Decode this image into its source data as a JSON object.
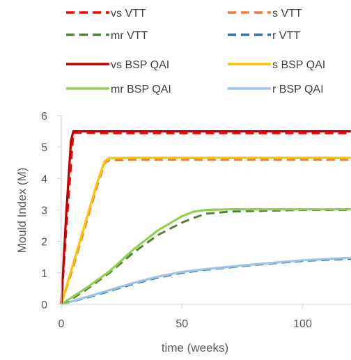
{
  "chart_data": {
    "type": "line",
    "xlabel": "time (weeks)",
    "ylabel": "Mould Index (M)",
    "xlim": [
      0,
      120
    ],
    "ylim": [
      0,
      6
    ],
    "xticks": [
      "0",
      "50",
      "100"
    ],
    "yticks": [
      "0",
      "1",
      "2",
      "3",
      "4",
      "5",
      "6"
    ],
    "grid": false,
    "legend_position": "top",
    "series": [
      {
        "name": "vs VTT",
        "style": "dashed",
        "color": "#FF0000",
        "x": [
          0,
          2,
          5,
          10,
          20,
          50,
          100,
          120
        ],
        "y": [
          0,
          2.3,
          5.45,
          5.45,
          5.44,
          5.44,
          5.44,
          5.44
        ]
      },
      {
        "name": "s VTT",
        "style": "dashed",
        "color": "#ED7D31",
        "x": [
          0,
          5,
          10,
          15,
          18,
          20,
          30,
          50,
          100,
          120
        ],
        "y": [
          0,
          1.2,
          2.5,
          3.8,
          4.5,
          4.58,
          4.6,
          4.6,
          4.6,
          4.6
        ]
      },
      {
        "name": "mr VTT",
        "style": "dashed",
        "color": "#548235",
        "x": [
          0,
          5,
          10,
          20,
          30,
          40,
          50,
          55,
          60,
          70,
          100,
          120
        ],
        "y": [
          0,
          0.2,
          0.45,
          1.0,
          1.65,
          2.2,
          2.6,
          2.75,
          2.88,
          2.95,
          3.0,
          3.0
        ]
      },
      {
        "name": "r VTT",
        "style": "dashed",
        "color": "#2E75B6",
        "x": [
          0,
          10,
          20,
          30,
          40,
          50,
          60,
          80,
          100,
          120
        ],
        "y": [
          0,
          0.2,
          0.42,
          0.65,
          0.85,
          1.0,
          1.1,
          1.25,
          1.38,
          1.45
        ]
      },
      {
        "name": "vs BSP QAI",
        "style": "solid",
        "color": "#C00000",
        "x": [
          0,
          2,
          4,
          5,
          10,
          20,
          50,
          100,
          120
        ],
        "y": [
          0,
          2.8,
          5.2,
          5.5,
          5.5,
          5.5,
          5.5,
          5.5,
          5.5
        ]
      },
      {
        "name": "s BSP QAI",
        "style": "solid",
        "color": "#FFC000",
        "x": [
          0,
          5,
          10,
          15,
          18,
          20,
          30,
          50,
          100,
          120
        ],
        "y": [
          0,
          1.3,
          2.6,
          3.9,
          4.55,
          4.65,
          4.66,
          4.66,
          4.66,
          4.66
        ]
      },
      {
        "name": "mr BSP QAI",
        "style": "solid",
        "color": "#92D050",
        "x": [
          0,
          5,
          10,
          20,
          30,
          40,
          50,
          55,
          60,
          70,
          100,
          120
        ],
        "y": [
          0,
          0.25,
          0.5,
          1.05,
          1.75,
          2.35,
          2.8,
          2.95,
          3.0,
          3.02,
          3.02,
          3.02
        ]
      },
      {
        "name": "r BSP QAI",
        "style": "solid",
        "color": "#9DC3E6",
        "x": [
          0,
          10,
          20,
          30,
          40,
          50,
          60,
          80,
          100,
          120
        ],
        "y": [
          0,
          0.22,
          0.45,
          0.68,
          0.88,
          1.03,
          1.12,
          1.27,
          1.4,
          1.48
        ]
      }
    ]
  }
}
